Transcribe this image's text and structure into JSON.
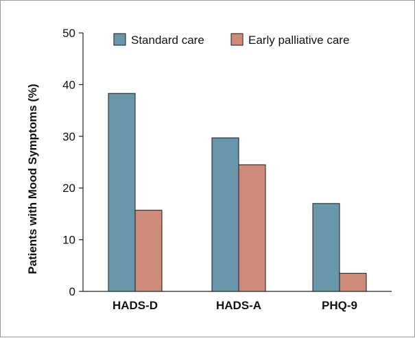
{
  "chart_data": {
    "type": "bar",
    "title": "",
    "ylabel": "Patients with Mood Symptoms (%)",
    "xlabel": "",
    "ylim": [
      0,
      50
    ],
    "yticks": [
      0,
      10,
      20,
      30,
      40,
      50
    ],
    "categories": [
      "HADS-D",
      "HADS-A",
      "PHQ-9"
    ],
    "series": [
      {
        "name": "Standard care",
        "color": "#6a96ab",
        "values": [
          38.3,
          29.7,
          17.0
        ]
      },
      {
        "name": "Early palliative care",
        "color": "#cf8b79",
        "values": [
          15.7,
          24.5,
          3.5
        ]
      }
    ],
    "legend_position": "top-right",
    "grid": false
  }
}
